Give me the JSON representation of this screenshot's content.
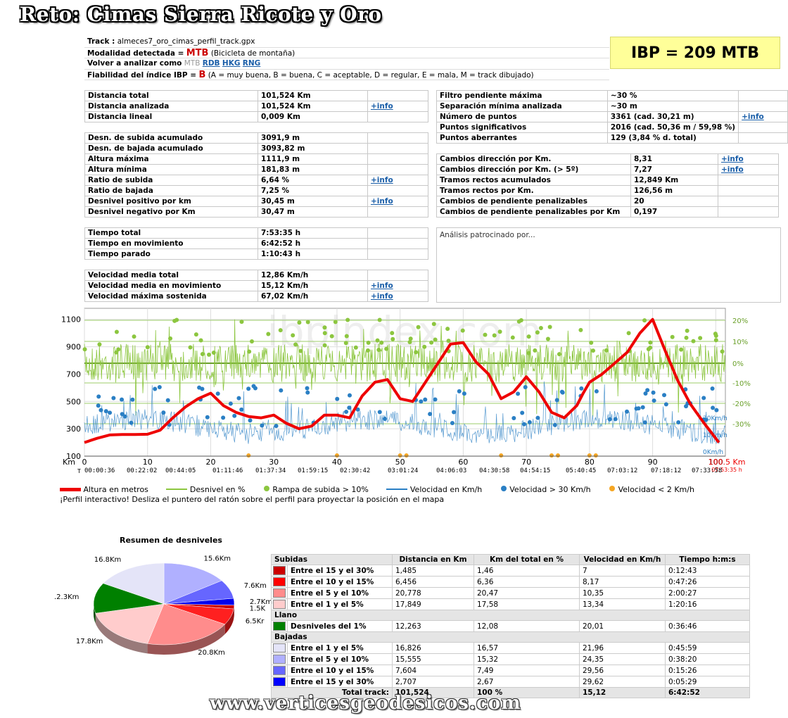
{
  "title": "Reto: Cimas Sierra Ricote y Oro",
  "header": {
    "track_label": "Track :",
    "track_value": "almeces7_oro_cimas_perfil_track.gpx",
    "modalidad_label": "Modalidad detectada =",
    "modalidad_value": "MTB",
    "modalidad_desc": "(Bicicleta de montaña)",
    "volver_label": "Volver a analizar como",
    "volver_current": "MTB",
    "volver_links": [
      "RDB",
      "HKG",
      "RNG"
    ],
    "fiab_label": "Fiabilidad del índice IBP =",
    "fiab_value": "B",
    "fiab_desc": "(A = muy buena, B = buena, C = aceptable, D = regular, E = mala, M = track dibujado)",
    "ibp": "IBP = 209 MTB"
  },
  "info_link": "+info",
  "left_tables": [
    [
      {
        "label": "Distancia total",
        "value": "101,524 Km",
        "link": ""
      },
      {
        "label": "Distancia analizada",
        "value": "101,524 Km",
        "link": "+info"
      },
      {
        "label": "Distancia lineal",
        "value": "0,009 Km",
        "link": ""
      }
    ],
    [
      {
        "label": "Desn. de subida acumulado",
        "value": "3091,9 m",
        "link": ""
      },
      {
        "label": "Desn. de bajada acumulado",
        "value": "3093,82 m",
        "link": ""
      },
      {
        "label": "Altura máxima",
        "value": "1111,9 m",
        "link": ""
      },
      {
        "label": "Altura mínima",
        "value": "181,83 m",
        "link": ""
      },
      {
        "label": "Ratio de subida",
        "value": "6,64 %",
        "link": "+info"
      },
      {
        "label": "Ratio de bajada",
        "value": "7,25 %",
        "link": ""
      },
      {
        "label": "Desnivel positivo por km",
        "value": "30,45 m",
        "link": "+info"
      },
      {
        "label": "Desnivel negativo por Km",
        "value": "30,47 m",
        "link": ""
      }
    ],
    [
      {
        "label": "Tiempo total",
        "value": "7:53:35 h",
        "link": ""
      },
      {
        "label": "Tiempo en movimiento",
        "value": "6:42:52 h",
        "link": ""
      },
      {
        "label": "Tiempo parado",
        "value": "1:10:43 h",
        "link": ""
      }
    ],
    [
      {
        "label": "Velocidad media total",
        "value": "12,86 Km/h",
        "link": ""
      },
      {
        "label": "Velocidad media en movimiento",
        "value": "15,12 Km/h",
        "link": "+info"
      },
      {
        "label": "Velocidad máxima sostenida",
        "value": "67,02 Km/h",
        "link": "+info"
      }
    ]
  ],
  "right_tables": [
    [
      {
        "label": "Filtro pendiente máxima",
        "value": "~30 %",
        "link": ""
      },
      {
        "label": "Separación mínima analizada",
        "value": "~30 m",
        "link": ""
      },
      {
        "label": "Número de puntos",
        "value": "3361   (cad. 30,21 m)",
        "link": "+info"
      },
      {
        "label": "Puntos significativos",
        "value": "2016   (cad. 50,36 m / 59,98 %)",
        "link": ""
      },
      {
        "label": "Puntos aberrantes",
        "value": "129   (3,84 % d. total)",
        "link": ""
      }
    ],
    [
      {
        "label": "Cambios dirección por Km.",
        "value": "8,31",
        "link": "+info"
      },
      {
        "label": "Cambios dirección por Km. (> 5º)",
        "value": "7,27",
        "link": "+info"
      },
      {
        "label": "Tramos rectos acumulados",
        "value": "12,849 Km",
        "link": ""
      },
      {
        "label": "Tramos rectos por Km.",
        "value": "126,56 m",
        "link": ""
      },
      {
        "label": "Cambios de pendiente penalizables",
        "value": "20",
        "link": ""
      },
      {
        "label": "Cambios de pendiente penalizables por Km",
        "value": "0,197",
        "link": ""
      }
    ]
  ],
  "sponsor_text": "Análisis patrocinado por...",
  "chart_data": [
    {
      "type": "line",
      "watermark": "ibpindex.com",
      "x_unit": "Km",
      "x_end_label": "100.5 Km",
      "x_end_time": "07:53:35 h",
      "x_ticks": [
        0,
        10,
        20,
        30,
        40,
        50,
        60,
        70,
        80,
        90,
        100
      ],
      "x_tick_labels": [
        "0",
        "10",
        "20",
        "30",
        "40",
        "50",
        "60",
        "70",
        "80",
        "90",
        "100"
      ],
      "time_prefix": "T",
      "time_ticks": [
        "00:00:36",
        "00:22:02",
        "00:44:05",
        "01:11:46",
        "01:37:34",
        "01:59:15",
        "02:30:42",
        "03:01:24",
        "04:06:03",
        "04:30:58",
        "04:54:15",
        "05:40:45",
        "07:03:12",
        "07:18:12",
        "07:33:58"
      ],
      "y_left_ticks": [
        100,
        300,
        500,
        700,
        900,
        1100
      ],
      "y_left_range": [
        100,
        1150
      ],
      "y_right_ticks": [
        "20%",
        "10%",
        "0%",
        "-10%",
        "-20%",
        "-30%"
      ],
      "speed_labels": [
        "20Km/h",
        "10Km/h",
        "0Km/h"
      ],
      "altitude": {
        "name": "Altura en metros",
        "x": [
          0,
          2,
          4,
          6,
          8,
          10,
          12,
          14,
          16,
          18,
          20,
          22,
          24,
          26,
          28,
          30,
          32,
          34,
          36,
          38,
          40,
          42,
          44,
          46,
          48,
          50,
          52,
          54,
          56,
          58,
          60,
          62,
          64,
          66,
          68,
          70,
          72,
          74,
          76,
          78,
          79,
          80,
          82,
          84,
          86,
          88,
          90,
          92,
          94,
          96,
          98,
          100.5
        ],
        "y": [
          200,
          230,
          255,
          258,
          258,
          260,
          290,
          380,
          460,
          520,
          560,
          470,
          420,
          390,
          380,
          400,
          340,
          300,
          320,
          400,
          400,
          380,
          540,
          640,
          660,
          520,
          500,
          640,
          780,
          920,
          930,
          790,
          700,
          520,
          570,
          680,
          570,
          420,
          380,
          470,
          560,
          640,
          700,
          780,
          860,
          1000,
          1100,
          870,
          650,
          480,
          350,
          200
        ]
      },
      "rampa_series": {
        "name": "Desnivel en %"
      },
      "legend": [
        "Altura en metros",
        "Desnivel en %",
        "Rampa de subida > 10%",
        "Velocidad en Km/h",
        "Velocidad > 30 Km/h",
        "Velocidad < 2 Km/h"
      ]
    },
    {
      "type": "pie",
      "title": "Resumen de desniveles",
      "slices": [
        {
          "label": "15.6Km",
          "value": 15.555,
          "color": "#b0b0ff"
        },
        {
          "label": "7.6Km",
          "value": 7.604,
          "color": "#6666ff"
        },
        {
          "label": "2.7Km",
          "value": 2.707,
          "color": "#0000ee"
        },
        {
          "label": "1.5K",
          "value": 1.485,
          "color": "#cc0000"
        },
        {
          "label": "6.5Kr",
          "value": 6.456,
          "color": "#ff2020"
        },
        {
          "label": "20.8Km",
          "value": 20.778,
          "color": "#ff8c8c"
        },
        {
          "label": "17.8Km",
          "value": 17.849,
          "color": "#ffcccc"
        },
        {
          "label": ".2.3Km",
          "value": 12.263,
          "color": "#008000"
        },
        {
          "label": "16.8Km",
          "value": 16.826,
          "color": "#e4e4f8"
        }
      ]
    }
  ],
  "legend_note": "¡Perfil interactivo! Desliza el puntero del ratón sobre el perfil para proyectar la posición en el mapa",
  "summary_table": {
    "headers": [
      "Subidas",
      "Distancia en Km",
      "Km del total en %",
      "Velocidad en Km/h",
      "Tiempo h:m:s"
    ],
    "subidas": [
      {
        "color": "#cc0000",
        "label": "Entre el 15 y el 30%",
        "dist": "1,485",
        "pct": "1,46",
        "vel": "7",
        "time": "0:12:43"
      },
      {
        "color": "#ff0000",
        "label": "Entre el 10 y el 15%",
        "dist": "6,456",
        "pct": "6,36",
        "vel": "8,17",
        "time": "0:47:26"
      },
      {
        "color": "#ff8c8c",
        "label": "Entre el 5 y el 10%",
        "dist": "20,778",
        "pct": "20,47",
        "vel": "10,35",
        "time": "2:00:27"
      },
      {
        "color": "#ffcccc",
        "label": "Entre el 1 y el 5%",
        "dist": "17,849",
        "pct": "17,58",
        "vel": "13,34",
        "time": "1:20:16"
      }
    ],
    "llano_title": "Llano",
    "llano": [
      {
        "color": "#008000",
        "label": "Desniveles del 1%",
        "dist": "12,263",
        "pct": "12,08",
        "vel": "20,01",
        "time": "0:36:46"
      }
    ],
    "bajadas_title": "Bajadas",
    "bajadas": [
      {
        "color": "#e4e4f8",
        "label": "Entre el 1 y el 5%",
        "dist": "16,826",
        "pct": "16,57",
        "vel": "21,96",
        "time": "0:45:59"
      },
      {
        "color": "#b0b0ff",
        "label": "Entre el 5 y el 10%",
        "dist": "15,555",
        "pct": "15,32",
        "vel": "24,35",
        "time": "0:38:20"
      },
      {
        "color": "#6666ff",
        "label": "Entre el 10 y el 15%",
        "dist": "7,604",
        "pct": "7,49",
        "vel": "29,56",
        "time": "0:15:26"
      },
      {
        "color": "#0000ff",
        "label": "Entre el 15 y el 30%",
        "dist": "2,707",
        "pct": "2,67",
        "vel": "29,62",
        "time": "0:05:29"
      }
    ],
    "total": {
      "label": "Total track:",
      "dist": "101,524",
      "pct": "100 %",
      "vel": "15,12",
      "time": "6:42:52"
    }
  },
  "footer": "www.verticesgeodesicos.com",
  "colors": {
    "altitude": "#ee0000",
    "slope": "#8cc63f",
    "speed": "#2a7fc4",
    "slow": "#f5a623",
    "ibp_bg": "#ffff99"
  }
}
